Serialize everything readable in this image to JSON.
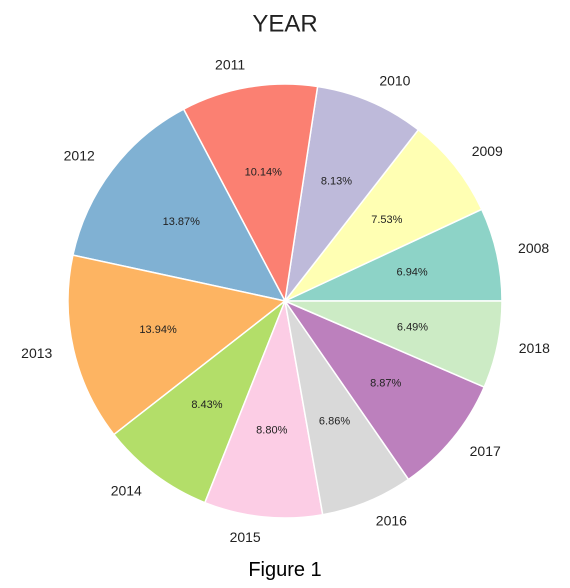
{
  "chart_data": {
    "type": "pie",
    "title": "YEAR",
    "categories": [
      "2008",
      "2009",
      "2010",
      "2011",
      "2012",
      "2013",
      "2014",
      "2015",
      "2016",
      "2017",
      "2018"
    ],
    "values": [
      6.94,
      7.53,
      8.13,
      10.14,
      13.87,
      13.94,
      8.43,
      8.8,
      6.86,
      8.87,
      6.49
    ],
    "value_labels": [
      "6.94%",
      "7.53%",
      "8.13%",
      "10.14%",
      "13.87%",
      "13.94%",
      "8.43%",
      "8.80%",
      "6.86%",
      "8.87%",
      "6.49%"
    ],
    "colors": [
      "#8dd3c7",
      "#ffffb3",
      "#bebada",
      "#fb8072",
      "#80b1d3",
      "#fdb462",
      "#b3de69",
      "#fccde5",
      "#d9d9d9",
      "#bc80bd",
      "#ccebc5"
    ],
    "start_angle_deg": 0,
    "direction": "counterclockwise",
    "legend": "none"
  },
  "caption": "Figure 1"
}
